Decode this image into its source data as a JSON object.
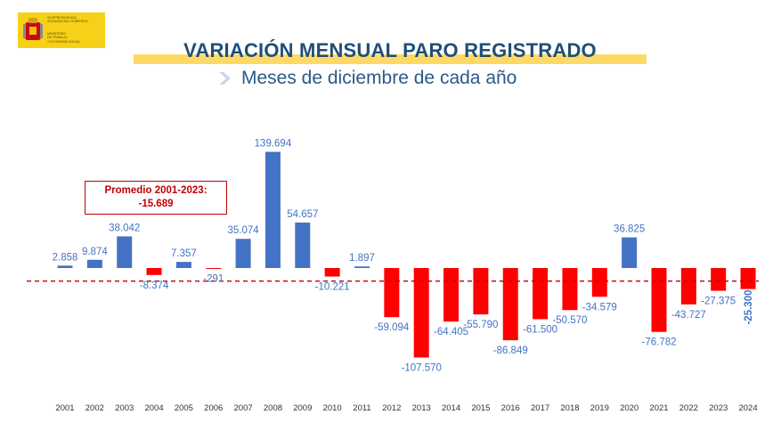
{
  "logo": {
    "line1": "VICEPRESIDENCIA\nSEGUNDA DEL GOBIERNO",
    "line2": "MINISTERIO\nDE TRABAJO\nY ECONOMÍA SOCIAL",
    "colors": {
      "background": "#f7d117",
      "shield": "#c60b1e"
    }
  },
  "header": {
    "title": "VARIACIÓN MENSUAL PARO REGISTRADO",
    "subtitle": "Meses de diciembre de cada año"
  },
  "average_box": {
    "label": "Promedio 2001-2023:",
    "value": "-15.689"
  },
  "chart_data": {
    "type": "bar",
    "title": "VARIACIÓN MENSUAL PARO REGISTRADO",
    "subtitle": "Meses de diciembre de cada año",
    "categories": [
      "2001",
      "2002",
      "2003",
      "2004",
      "2005",
      "2006",
      "2007",
      "2008",
      "2009",
      "2010",
      "2011",
      "2012",
      "2013",
      "2014",
      "2015",
      "2016",
      "2017",
      "2018",
      "2019",
      "2020",
      "2021",
      "2022",
      "2023",
      "2024"
    ],
    "values": [
      2858,
      9874,
      38042,
      -8374,
      7357,
      -291,
      35074,
      139694,
      54657,
      -10221,
      1897,
      -59094,
      -107570,
      -64405,
      -55790,
      -86849,
      -61500,
      -50570,
      -34579,
      36825,
      -76782,
      -43727,
      -27375,
      -25300
    ],
    "labels": [
      "2.858",
      "9.874",
      "38.042",
      "-8.374",
      "7.357",
      "-291",
      "35.074",
      "139.694",
      "54.657",
      "-10.221",
      "1.897",
      "-59.094",
      "-107.570",
      "-64.405",
      "-55.790",
      "-86.849",
      "-61.500",
      "-50.570",
      "-34.579",
      "36.825",
      "-76.782",
      "-43.727",
      "-27.375",
      "-25.300"
    ],
    "reference_line": {
      "value": -15689,
      "style": "dashed"
    },
    "ylim": [
      -120000,
      150000
    ],
    "grid": false,
    "legend": "none",
    "colors": {
      "positive": "#4472c4",
      "negative": "#ff0000",
      "label": "#4472c4",
      "reference": "#c00000"
    }
  }
}
